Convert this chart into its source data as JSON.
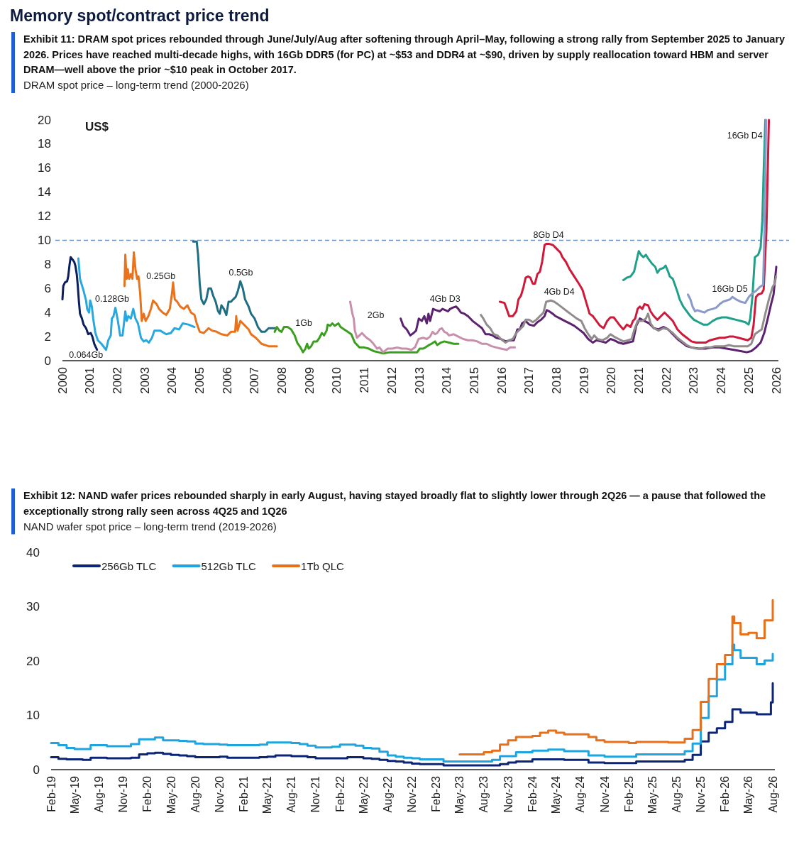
{
  "chart_data": [
    {
      "type": "line",
      "title": "Exhibit 11: DRAM spot prices rebounded through June/July/Aug after softening through April–May, following a strong rally from September 2025 to January 2026. Prices have reached multi-decade highs, with 16Gb DDR5 (for PC) at ~$53 and DDR4 at ~$90, driven by supply reallocation toward HBM and server DRAM—well above the prior ~$10 peak in October 2017.",
      "subtitle": "DRAM spot price – long-term trend (2000-2026)",
      "ylabel": "US$",
      "annotations": [
        "Memory spot/contract price trend"
      ],
      "xlim": [
        2000,
        2026
      ],
      "xticks": [
        2000,
        2001,
        2002,
        2003,
        2004,
        2005,
        2006,
        2007,
        2008,
        2009,
        2010,
        2011,
        2012,
        2013,
        2014,
        2015,
        2016,
        2017,
        2018,
        2019,
        2020,
        2021,
        2022,
        2023,
        2024,
        2025,
        2026
      ],
      "ylim": [
        0,
        20
      ],
      "yticks": [
        0,
        2,
        4,
        6,
        8,
        10,
        12,
        14,
        16,
        18,
        20
      ],
      "ref_lines": [
        {
          "axis": "y",
          "value": 10,
          "color": "#6b93c6",
          "line_style": "dashed"
        }
      ],
      "series": [
        {
          "name": "0.064Gb",
          "color": "#0b1f5e",
          "x": [
            2000.0,
            2000.03,
            2000.09,
            2000.17,
            2000.21,
            2000.26,
            2000.3,
            2000.37,
            2000.43,
            2000.47,
            2000.52,
            2000.56,
            2000.6,
            2000.64,
            2000.71,
            2000.77,
            2000.86,
            2000.94,
            2001.03,
            2001.09,
            2001.16,
            2001.26
          ],
          "values": [
            5.1,
            6.2,
            6.5,
            6.6,
            7.0,
            8.0,
            8.6,
            8.4,
            8.2,
            7.9,
            7.2,
            6.2,
            4.9,
            3.9,
            3.5,
            3.0,
            2.7,
            2.2,
            2.3,
            2.0,
            1.4,
            0.9
          ]
        },
        {
          "name": "0.128Gb",
          "color": "#29a8e0",
          "x": [
            2000.58,
            2000.64,
            2000.77,
            2000.86,
            2000.9,
            2000.97,
            2001.01,
            2001.07,
            2001.12,
            2001.2,
            2001.29,
            2001.42,
            2001.59,
            2001.67,
            2001.76,
            2001.8,
            2001.86,
            2001.93,
            2002.02,
            2002.1,
            2002.19,
            2002.29,
            2002.34,
            2002.4,
            2002.49,
            2002.58,
            2002.66,
            2002.75,
            2002.86,
            2002.96,
            2003.05,
            2003.15,
            2003.26,
            2003.35,
            2003.56,
            2003.78,
            2003.95,
            2004.08,
            2004.25,
            2004.38,
            2004.59,
            2004.81
          ],
          "values": [
            8.5,
            6.8,
            5.8,
            5.0,
            4.3,
            4.0,
            5.0,
            4.5,
            3.5,
            2.3,
            1.7,
            1.4,
            0.9,
            1.7,
            2.1,
            3.5,
            3.7,
            4.4,
            3.3,
            2.1,
            2.1,
            4.1,
            3.3,
            3.7,
            3.5,
            4.3,
            3.5,
            3.1,
            1.9,
            1.6,
            1.7,
            1.5,
            1.9,
            2.5,
            2.5,
            2.2,
            2.3,
            2.7,
            2.6,
            3.1,
            3.0,
            2.8
          ]
        },
        {
          "name": "0.25Gb",
          "color": "#e8731c",
          "x": [
            2002.26,
            2002.29,
            2002.34,
            2002.38,
            2002.43,
            2002.49,
            2002.55,
            2002.6,
            2002.66,
            2002.72,
            2002.77,
            2002.83,
            2002.89,
            2002.96,
            2003.03,
            2003.13,
            2003.22,
            2003.3,
            2003.43,
            2003.52,
            2003.65,
            2003.78,
            2003.91,
            2003.99,
            2004.03,
            2004.09,
            2004.18,
            2004.29,
            2004.42,
            2004.55,
            2004.68,
            2004.81,
            2004.89,
            2005.0,
            2005.15,
            2005.32,
            2005.45,
            2005.62,
            2005.79,
            2006.01,
            2006.14,
            2006.29,
            2006.33,
            2006.38,
            2006.48,
            2006.61,
            2006.78,
            2006.87,
            2007.04,
            2007.25,
            2007.51,
            2007.81
          ],
          "values": [
            6.2,
            8.8,
            6.8,
            7.6,
            6.8,
            7.2,
            6.8,
            9.0,
            7.6,
            6.8,
            7.0,
            5.6,
            3.3,
            3.9,
            3.3,
            3.7,
            4.3,
            5.0,
            4.7,
            4.3,
            4.0,
            3.8,
            4.3,
            5.6,
            6.5,
            5.1,
            4.9,
            4.5,
            4.3,
            4.6,
            4.0,
            3.8,
            3.1,
            2.4,
            2.3,
            2.7,
            2.5,
            2.4,
            2.2,
            2.1,
            2.4,
            2.4,
            3.7,
            2.5,
            3.3,
            3.0,
            2.6,
            2.2,
            1.9,
            1.4,
            1.2,
            1.2
          ]
        },
        {
          "name": "0.5Gb",
          "color": "#1f6e84",
          "x": [
            2004.76,
            2004.89,
            2004.94,
            2005.0,
            2005.06,
            2005.15,
            2005.24,
            2005.32,
            2005.41,
            2005.49,
            2005.58,
            2005.67,
            2005.73,
            2005.79,
            2005.88,
            2005.97,
            2006.05,
            2006.14,
            2006.22,
            2006.31,
            2006.39,
            2006.48,
            2006.57,
            2006.65,
            2006.78,
            2006.87,
            2007.0,
            2007.12,
            2007.25,
            2007.38,
            2007.51,
            2007.64,
            2007.77
          ],
          "values": [
            9.9,
            9.9,
            8.8,
            6.4,
            5.1,
            4.7,
            5.1,
            6.0,
            6.0,
            5.4,
            4.9,
            4.1,
            3.9,
            4.6,
            4.3,
            3.8,
            4.9,
            4.9,
            5.1,
            5.3,
            5.8,
            6.6,
            6.0,
            5.1,
            4.5,
            3.9,
            3.5,
            2.8,
            2.4,
            2.4,
            2.7,
            2.7,
            2.7
          ]
        },
        {
          "name": "1Gb",
          "color": "#3a9e1e",
          "x": [
            2007.73,
            2007.81,
            2007.9,
            2007.98,
            2008.07,
            2008.2,
            2008.33,
            2008.46,
            2008.55,
            2008.67,
            2008.76,
            2008.85,
            2008.91,
            2008.97,
            2009.06,
            2009.15,
            2009.27,
            2009.36,
            2009.45,
            2009.53,
            2009.62,
            2009.66,
            2009.75,
            2009.83,
            2009.92,
            2010.05,
            2010.13,
            2010.26,
            2010.39,
            2010.52,
            2010.65,
            2010.82,
            2010.99,
            2011.16,
            2011.33,
            2011.51,
            2011.68,
            2011.94,
            2012.36,
            2012.71,
            2012.92,
            2013.01,
            2013.14,
            2013.22,
            2013.35,
            2013.44,
            2013.57,
            2013.65,
            2013.78,
            2013.91,
            2014.08,
            2014.25,
            2014.42
          ],
          "values": [
            2.4,
            2.8,
            2.5,
            2.4,
            2.8,
            2.8,
            2.6,
            2.1,
            1.5,
            1.1,
            0.7,
            1.0,
            1.4,
            1.0,
            1.2,
            1.6,
            1.6,
            1.9,
            2.3,
            2.1,
            2.5,
            3.0,
            2.9,
            3.1,
            2.9,
            3.1,
            2.8,
            2.6,
            2.4,
            2.2,
            1.5,
            1.1,
            1.1,
            1.0,
            0.8,
            0.7,
            0.6,
            0.7,
            0.7,
            0.7,
            0.7,
            1.0,
            1.0,
            1.1,
            1.3,
            1.4,
            1.6,
            1.3,
            1.5,
            1.6,
            1.5,
            1.4,
            1.4
          ]
        },
        {
          "name": "2Gb",
          "color": "#c78fab",
          "x": [
            2010.48,
            2010.56,
            2010.61,
            2010.65,
            2010.73,
            2010.82,
            2010.91,
            2010.99,
            2011.08,
            2011.21,
            2011.33,
            2011.46,
            2011.55,
            2011.68,
            2011.85,
            2012.02,
            2012.19,
            2012.36,
            2012.54,
            2012.71,
            2012.84,
            2012.97,
            2013.14,
            2013.27,
            2013.39,
            2013.48,
            2013.57,
            2013.65,
            2013.74,
            2013.82,
            2013.91,
            2014.0,
            2014.08,
            2014.25,
            2014.42,
            2014.6,
            2014.77,
            2014.94,
            2015.11,
            2015.28,
            2015.45,
            2015.63,
            2015.8,
            2015.97,
            2016.18,
            2016.31,
            2016.48
          ],
          "values": [
            4.9,
            3.9,
            3.5,
            2.5,
            1.9,
            2.1,
            2.3,
            2.1,
            1.9,
            1.7,
            1.4,
            1.0,
            1.1,
            0.7,
            1.0,
            1.0,
            1.1,
            1.0,
            1.0,
            0.9,
            1.1,
            1.8,
            1.9,
            1.8,
            2.0,
            2.4,
            2.2,
            2.3,
            2.6,
            2.7,
            2.4,
            2.3,
            2.1,
            2.2,
            2.0,
            1.8,
            1.7,
            1.7,
            1.6,
            1.4,
            1.4,
            1.2,
            1.1,
            1.0,
            0.9,
            1.1,
            1.1
          ]
        },
        {
          "name": "4Gb D3",
          "color": "#5c226f",
          "x": [
            2012.32,
            2012.41,
            2012.54,
            2012.67,
            2012.79,
            2012.88,
            2012.98,
            2013.09,
            2013.18,
            2013.27,
            2013.33,
            2013.39,
            2013.5,
            2013.61,
            2013.74,
            2013.84,
            2013.95,
            2014.04,
            2014.12,
            2014.21,
            2014.34,
            2014.42,
            2014.51,
            2014.64,
            2014.77,
            2014.94,
            2015.11,
            2015.28,
            2015.41,
            2015.54,
            2015.67,
            2015.8,
            2015.97,
            2016.14,
            2016.31,
            2016.44,
            2016.57,
            2016.66,
            2016.74,
            2016.87,
            2017.0,
            2017.17,
            2017.3,
            2017.43,
            2017.56,
            2017.64,
            2017.73,
            2017.86,
            2017.96,
            2018.13,
            2018.3,
            2018.47,
            2018.64,
            2018.81,
            2018.98,
            2019.15,
            2019.32,
            2019.45,
            2019.62,
            2019.79,
            2019.96,
            2020.09,
            2020.26,
            2020.43,
            2020.6,
            2020.78,
            2020.9,
            2021.03,
            2021.2,
            2021.37,
            2021.54,
            2021.71,
            2021.89,
            2022.06,
            2022.23,
            2022.4,
            2022.57,
            2022.74,
            2022.91,
            2023.17,
            2023.42,
            2023.68,
            2023.94,
            2024.19,
            2024.45,
            2024.7,
            2024.92,
            2025.09,
            2025.26,
            2025.43,
            2025.56,
            2025.69,
            2025.81,
            2025.9,
            2026.0
          ],
          "values": [
            3.5,
            2.9,
            2.6,
            2.1,
            2.3,
            2.5,
            3.5,
            3.3,
            3.7,
            3.1,
            3.9,
            3.3,
            4.3,
            4.2,
            4.1,
            4.3,
            4.2,
            4.1,
            4.3,
            4.4,
            4.5,
            4.3,
            4.0,
            3.9,
            3.7,
            3.3,
            3.0,
            2.7,
            2.2,
            2.2,
            2.1,
            1.9,
            1.8,
            1.6,
            1.7,
            1.7,
            2.6,
            2.6,
            3.1,
            3.3,
            3.0,
            2.9,
            3.2,
            3.4,
            3.7,
            4.2,
            4.1,
            3.9,
            3.7,
            3.5,
            3.3,
            3.1,
            2.9,
            2.6,
            2.3,
            1.8,
            1.5,
            1.7,
            1.6,
            1.5,
            1.8,
            1.7,
            1.5,
            1.4,
            1.5,
            1.6,
            2.9,
            3.5,
            3.3,
            3.1,
            2.7,
            2.6,
            2.8,
            2.6,
            2.2,
            1.8,
            1.5,
            1.2,
            1.1,
            1.0,
            1.0,
            1.1,
            1.1,
            1.0,
            0.9,
            0.8,
            0.7,
            0.8,
            1.1,
            1.5,
            2.3,
            3.5,
            4.7,
            5.5,
            7.8
          ]
        },
        {
          "name": "4Gb D4",
          "color": "#918b8b",
          "x": [
            2015.24,
            2015.33,
            2015.45,
            2015.58,
            2015.71,
            2015.84,
            2015.97,
            2016.14,
            2016.27,
            2016.4,
            2016.53,
            2016.66,
            2016.79,
            2016.87,
            2017.0,
            2017.13,
            2017.26,
            2017.39,
            2017.52,
            2017.62,
            2017.79,
            2017.91,
            2018.04,
            2018.21,
            2018.38,
            2018.56,
            2018.73,
            2018.9,
            2019.02,
            2019.15,
            2019.28,
            2019.37,
            2019.49,
            2019.67,
            2019.84,
            2019.96,
            2020.09,
            2020.26,
            2020.43,
            2020.6,
            2020.73,
            2020.82,
            2020.95,
            2021.12,
            2021.25,
            2021.33,
            2021.42,
            2021.54,
            2021.71,
            2021.89,
            2022.06,
            2022.23,
            2022.4,
            2022.57,
            2022.74,
            2022.91,
            2023.08,
            2023.25,
            2023.42,
            2023.59,
            2023.76,
            2023.94,
            2024.11,
            2024.28,
            2024.45,
            2024.62,
            2024.79,
            2024.96,
            2025.09,
            2025.22,
            2025.34,
            2025.47,
            2025.6,
            2025.73,
            2025.86,
            2025.94,
            2025.99
          ],
          "values": [
            3.8,
            3.5,
            3.0,
            2.7,
            2.2,
            2.1,
            1.8,
            1.5,
            1.7,
            1.8,
            2.3,
            2.6,
            2.9,
            3.4,
            3.4,
            3.2,
            3.4,
            3.7,
            4.0,
            4.9,
            5.0,
            4.9,
            4.7,
            4.4,
            4.1,
            3.8,
            3.5,
            3.3,
            2.7,
            2.2,
            1.8,
            2.1,
            1.8,
            1.7,
            1.9,
            2.2,
            2.0,
            1.8,
            1.6,
            1.7,
            1.8,
            2.5,
            3.3,
            3.3,
            3.5,
            3.9,
            3.1,
            2.7,
            2.5,
            2.7,
            2.6,
            2.3,
            1.9,
            1.6,
            1.3,
            1.1,
            1.0,
            1.0,
            1.1,
            1.1,
            1.2,
            1.2,
            1.2,
            1.3,
            1.2,
            1.2,
            1.2,
            1.2,
            1.4,
            2.2,
            2.4,
            2.6,
            3.9,
            5.1,
            6.1,
            6.4,
            7.0
          ]
        },
        {
          "name": "8Gb D4",
          "color": "#d0193a",
          "x": [
            2015.93,
            2016.1,
            2016.18,
            2016.27,
            2016.4,
            2016.53,
            2016.61,
            2016.7,
            2016.79,
            2016.87,
            2016.96,
            2017.04,
            2017.13,
            2017.21,
            2017.3,
            2017.39,
            2017.47,
            2017.56,
            2017.62,
            2017.74,
            2017.87,
            2018.0,
            2018.13,
            2018.21,
            2018.34,
            2018.47,
            2018.64,
            2018.81,
            2018.94,
            2019.07,
            2019.2,
            2019.32,
            2019.45,
            2019.58,
            2019.71,
            2019.84,
            2019.96,
            2020.08,
            2020.18,
            2020.31,
            2020.43,
            2020.56,
            2020.69,
            2020.78,
            2020.86,
            2020.95,
            2021.03,
            2021.12,
            2021.2,
            2021.33,
            2021.42,
            2021.54,
            2021.67,
            2021.8,
            2021.93,
            2022.06,
            2022.23,
            2022.4,
            2022.57,
            2022.74,
            2022.91,
            2023.08,
            2023.25,
            2023.42,
            2023.59,
            2023.76,
            2023.94,
            2024.11,
            2024.28,
            2024.45,
            2024.62,
            2024.79,
            2024.96,
            2025.09,
            2025.17,
            2025.26,
            2025.34,
            2025.47,
            2025.54,
            2025.64,
            2025.73
          ],
          "values": [
            4.9,
            4.8,
            4.3,
            3.7,
            3.7,
            4.1,
            5.1,
            5.4,
            6.1,
            6.9,
            7.0,
            6.9,
            6.4,
            6.4,
            7.2,
            7.4,
            8.2,
            9.6,
            9.7,
            9.7,
            9.6,
            9.3,
            9.0,
            8.6,
            8.2,
            7.6,
            7.0,
            6.4,
            5.9,
            4.9,
            3.9,
            3.7,
            3.3,
            2.9,
            2.7,
            3.3,
            3.6,
            3.6,
            3.3,
            2.9,
            2.6,
            3.0,
            2.8,
            3.3,
            3.5,
            4.3,
            4.5,
            4.3,
            4.7,
            4.6,
            4.1,
            3.7,
            3.4,
            3.7,
            4.0,
            3.7,
            3.3,
            2.6,
            2.2,
            1.9,
            1.6,
            1.5,
            1.5,
            1.5,
            1.7,
            1.8,
            1.9,
            1.9,
            2.0,
            2.0,
            1.9,
            1.8,
            1.7,
            1.9,
            2.9,
            5.3,
            5.5,
            5.6,
            5.9,
            10.8,
            20
          ]
        },
        {
          "name": "16Gb D4",
          "color": "#20a08a",
          "x": [
            2020.43,
            2020.56,
            2020.69,
            2020.82,
            2020.9,
            2020.99,
            2021.07,
            2021.16,
            2021.25,
            2021.33,
            2021.46,
            2021.59,
            2021.67,
            2021.76,
            2021.89,
            2021.97,
            2022.06,
            2022.12,
            2022.23,
            2022.31,
            2022.4,
            2022.48,
            2022.61,
            2022.74,
            2022.87,
            2023.0,
            2023.17,
            2023.34,
            2023.51,
            2023.68,
            2023.85,
            2024.02,
            2024.19,
            2024.36,
            2024.53,
            2024.7,
            2024.87,
            2024.99,
            2025.05,
            2025.13,
            2025.22,
            2025.34,
            2025.43,
            2025.49,
            2025.54,
            2025.6
          ],
          "values": [
            6.7,
            6.9,
            7.0,
            7.4,
            8.2,
            9.1,
            8.8,
            8.6,
            8.8,
            8.5,
            8.1,
            7.8,
            7.3,
            7.6,
            7.7,
            7.9,
            7.4,
            7.0,
            6.8,
            6.3,
            5.7,
            5.1,
            4.5,
            4.1,
            3.7,
            3.4,
            3.2,
            3.0,
            3.0,
            3.3,
            3.5,
            3.6,
            3.6,
            3.5,
            3.4,
            3.3,
            3.2,
            3.0,
            3.5,
            5.3,
            8.6,
            8.8,
            9.4,
            11.6,
            15.7,
            20
          ]
        },
        {
          "name": "16Gb D5",
          "color": "#8b9bc9",
          "x": [
            2022.78,
            2022.87,
            2022.95,
            2023.04,
            2023.12,
            2023.25,
            2023.38,
            2023.51,
            2023.68,
            2023.81,
            2023.94,
            2024.06,
            2024.19,
            2024.32,
            2024.4,
            2024.53,
            2024.7,
            2024.87,
            2025.0,
            2025.13,
            2025.26,
            2025.39,
            2025.52,
            2025.57,
            2025.63
          ],
          "values": [
            5.5,
            5.1,
            4.5,
            4.1,
            4.2,
            4.1,
            4.0,
            4.2,
            4.3,
            4.4,
            4.7,
            4.9,
            5.0,
            5.1,
            5.3,
            5.1,
            4.9,
            4.8,
            5.3,
            5.6,
            5.8,
            6.1,
            6.3,
            10.8,
            20
          ]
        }
      ]
    },
    {
      "type": "step",
      "title": "Exhibit 12: NAND wafer prices rebounded sharply in early August, having stayed broadly flat to slightly lower through 2Q26 — a pause that followed the exceptionally strong rally seen across 4Q25 and 1Q26",
      "subtitle": "NAND wafer spot price – long-term trend (2019-2026)",
      "xlim": [
        "2019-02",
        "2026-08"
      ],
      "xticks": [
        {
          "value": "2019-02",
          "label": "Feb-19"
        },
        {
          "value": "2019-05",
          "label": "May-19"
        },
        {
          "value": "2019-08",
          "label": "Aug-19"
        },
        {
          "value": "2019-11",
          "label": "Nov-19"
        },
        {
          "value": "2020-02",
          "label": "Feb-20"
        },
        {
          "value": "2020-05",
          "label": "May-20"
        },
        {
          "value": "2020-08",
          "label": "Aug-20"
        },
        {
          "value": "2020-11",
          "label": "Nov-20"
        },
        {
          "value": "2021-02",
          "label": "Feb-21"
        },
        {
          "value": "2021-05",
          "label": "May-21"
        },
        {
          "value": "2021-08",
          "label": "Aug-21"
        },
        {
          "value": "2021-11",
          "label": "Nov-21"
        },
        {
          "value": "2022-02",
          "label": "Feb-22"
        },
        {
          "value": "2022-05",
          "label": "May-22"
        },
        {
          "value": "2022-08",
          "label": "Aug-22"
        },
        {
          "value": "2022-11",
          "label": "Nov-22"
        },
        {
          "value": "2023-02",
          "label": "Feb-23"
        },
        {
          "value": "2023-05",
          "label": "May-23"
        },
        {
          "value": "2023-08",
          "label": "Aug-23"
        },
        {
          "value": "2023-11",
          "label": "Nov-23"
        },
        {
          "value": "2024-02",
          "label": "Feb-24"
        },
        {
          "value": "2024-05",
          "label": "May-24"
        },
        {
          "value": "2024-08",
          "label": "Aug-24"
        },
        {
          "value": "2024-11",
          "label": "Nov-24"
        },
        {
          "value": "2025-02",
          "label": "Feb-25"
        },
        {
          "value": "2025-05",
          "label": "May-25"
        },
        {
          "value": "2025-08",
          "label": "Aug-25"
        },
        {
          "value": "2025-11",
          "label": "Nov-25"
        },
        {
          "value": "2026-02",
          "label": "Feb-26"
        },
        {
          "value": "2026-05",
          "label": "May-26"
        },
        {
          "value": "2026-08",
          "label": "Aug-26"
        }
      ],
      "ylim": [
        0,
        40
      ],
      "yticks": [
        0,
        10,
        20,
        30,
        40
      ],
      "legend": "top left",
      "series": [
        {
          "name": "256Gb TLC",
          "color": "#0c2577",
          "x": [
            "2019-02",
            "2019-03",
            "2019-04",
            "2019-05",
            "2019-06",
            "2019-07",
            "2019-08",
            "2019-09",
            "2019-10",
            "2019-11",
            "2019-12",
            "2020-01",
            "2020-02",
            "2020-03",
            "2020-04",
            "2020-05",
            "2020-06",
            "2020-07",
            "2020-08",
            "2020-09",
            "2020-10",
            "2020-11",
            "2020-12",
            "2021-01",
            "2021-02",
            "2021-03",
            "2021-04",
            "2021-05",
            "2021-06",
            "2021-07",
            "2021-08",
            "2021-09",
            "2021-10",
            "2021-11",
            "2021-12",
            "2022-01",
            "2022-02",
            "2022-03",
            "2022-04",
            "2022-05",
            "2022-06",
            "2022-07",
            "2022-08",
            "2022-09",
            "2022-10",
            "2022-11",
            "2022-12",
            "2023-01",
            "2023-02",
            "2023-03",
            "2023-04",
            "2023-05",
            "2023-06",
            "2023-07",
            "2023-08",
            "2023-09",
            "2023-10",
            "2023-11",
            "2023-12",
            "2024-01",
            "2024-02",
            "2024-03",
            "2024-04",
            "2024-05",
            "2024-06",
            "2024-07",
            "2024-08",
            "2024-09",
            "2024-10",
            "2024-11",
            "2024-12",
            "2025-01",
            "2025-02",
            "2025-03",
            "2025-04",
            "2025-05",
            "2025-06",
            "2025-07",
            "2025-08",
            "2025-09",
            "2025-10",
            "2025-11",
            "2025-12",
            "2026-01",
            "2026-02",
            "2026-03",
            "2026-04",
            "2026-05",
            "2026-06",
            "2026-07",
            "2026-07-25",
            "2026-08"
          ],
          "values": [
            2.3,
            2.0,
            1.9,
            1.9,
            1.8,
            2.2,
            2.2,
            2.1,
            2.1,
            2.1,
            2.2,
            2.8,
            3.0,
            3.1,
            2.9,
            2.7,
            2.6,
            2.5,
            2.3,
            2.3,
            2.3,
            2.4,
            2.2,
            2.2,
            2.2,
            2.2,
            2.3,
            2.4,
            2.6,
            2.6,
            2.5,
            2.5,
            2.3,
            2.1,
            2.1,
            2.1,
            2.1,
            2.3,
            2.3,
            2.1,
            2.0,
            1.8,
            1.6,
            1.5,
            1.3,
            1.1,
            1.0,
            1.0,
            1.0,
            0.8,
            0.8,
            0.8,
            0.8,
            0.8,
            0.8,
            0.8,
            1.0,
            1.3,
            1.5,
            1.5,
            1.9,
            1.9,
            1.9,
            1.9,
            1.8,
            1.8,
            1.8,
            1.3,
            1.3,
            1.2,
            1.2,
            1.2,
            1.2,
            1.5,
            1.5,
            1.5,
            1.5,
            1.5,
            1.5,
            1.8,
            2.7,
            5.2,
            6.8,
            7.6,
            8.8,
            11.1,
            10.5,
            10.5,
            10.2,
            10.2,
            12.4,
            15.9
          ]
        },
        {
          "name": "512Gb TLC",
          "color": "#1ea5e0",
          "x": [
            "2019-02",
            "2019-03",
            "2019-04",
            "2019-05",
            "2019-06",
            "2019-07",
            "2019-08",
            "2019-09",
            "2019-10",
            "2019-11",
            "2019-12",
            "2020-01",
            "2020-02",
            "2020-03",
            "2020-04",
            "2020-05",
            "2020-06",
            "2020-07",
            "2020-08",
            "2020-09",
            "2020-10",
            "2020-11",
            "2020-12",
            "2021-01",
            "2021-02",
            "2021-03",
            "2021-04",
            "2021-05",
            "2021-06",
            "2021-07",
            "2021-08",
            "2021-09",
            "2021-10",
            "2021-11",
            "2021-12",
            "2022-01",
            "2022-02",
            "2022-03",
            "2022-04",
            "2022-05",
            "2022-06",
            "2022-07",
            "2022-08",
            "2022-09",
            "2022-10",
            "2022-11",
            "2022-12",
            "2023-01",
            "2023-02",
            "2023-03",
            "2023-04",
            "2023-05",
            "2023-06",
            "2023-07",
            "2023-08",
            "2023-09",
            "2023-10",
            "2023-11",
            "2023-12",
            "2024-01",
            "2024-02",
            "2024-03",
            "2024-04",
            "2024-05",
            "2024-06",
            "2024-07",
            "2024-08",
            "2024-09",
            "2024-10",
            "2024-11",
            "2024-12",
            "2025-01",
            "2025-02",
            "2025-03",
            "2025-04",
            "2025-05",
            "2025-06",
            "2025-07",
            "2025-08",
            "2025-09",
            "2025-10",
            "2025-11",
            "2025-12",
            "2026-01",
            "2026-02",
            "2026-03",
            "2026-03-08",
            "2026-04",
            "2026-05",
            "2026-06",
            "2026-07",
            "2026-08"
          ],
          "values": [
            4.9,
            4.5,
            4.0,
            3.8,
            3.8,
            4.5,
            4.5,
            4.3,
            4.3,
            4.3,
            4.7,
            5.6,
            5.6,
            5.9,
            5.4,
            5.4,
            5.3,
            5.2,
            4.8,
            4.7,
            4.7,
            4.6,
            4.5,
            4.5,
            4.5,
            4.5,
            4.6,
            5.0,
            5.0,
            5.0,
            4.9,
            4.7,
            4.4,
            4.1,
            4.1,
            4.2,
            4.6,
            4.6,
            4.4,
            4.0,
            3.9,
            3.3,
            2.6,
            2.4,
            2.2,
            2.1,
            1.9,
            1.9,
            1.9,
            1.5,
            1.5,
            1.5,
            1.5,
            1.5,
            1.5,
            1.8,
            2.5,
            2.5,
            3.2,
            3.2,
            3.5,
            3.5,
            3.7,
            3.7,
            3.4,
            3.4,
            3.4,
            2.6,
            2.6,
            2.4,
            2.4,
            2.4,
            2.4,
            2.8,
            2.8,
            2.8,
            2.8,
            2.8,
            2.8,
            3.4,
            4.8,
            9.5,
            13.5,
            16.6,
            19.4,
            23.0,
            22.0,
            20.6,
            20.6,
            19.4,
            20.1,
            21.3
          ]
        },
        {
          "name": "1Tb QLC",
          "color": "#e8701a",
          "x": [
            "2023-05",
            "2023-06",
            "2023-07",
            "2023-08",
            "2023-09",
            "2023-10",
            "2023-11",
            "2023-12",
            "2024-01",
            "2024-02",
            "2024-03",
            "2024-04",
            "2024-05",
            "2024-06",
            "2024-07",
            "2024-08",
            "2024-09",
            "2024-10",
            "2024-11",
            "2024-12",
            "2025-01",
            "2025-02",
            "2025-03",
            "2025-04",
            "2025-05",
            "2025-06",
            "2025-07",
            "2025-08",
            "2025-09",
            "2025-10",
            "2025-11",
            "2025-12",
            "2026-01",
            "2026-02",
            "2026-03",
            "2026-03-08",
            "2026-04",
            "2026-05",
            "2026-06",
            "2026-07",
            "2026-08"
          ],
          "values": [
            2.8,
            2.8,
            2.8,
            3.2,
            3.5,
            4.6,
            5.4,
            6.0,
            6.0,
            6.2,
            6.8,
            7.2,
            6.8,
            6.5,
            6.5,
            6.5,
            6.0,
            5.4,
            5.1,
            5.1,
            5.1,
            4.9,
            5.1,
            5.1,
            5.1,
            5.1,
            5.0,
            5.0,
            5.7,
            7.3,
            12.5,
            16.7,
            19.4,
            21.1,
            28.2,
            27.0,
            24.9,
            25.2,
            24.2,
            27.5,
            31.2
          ]
        }
      ]
    }
  ]
}
